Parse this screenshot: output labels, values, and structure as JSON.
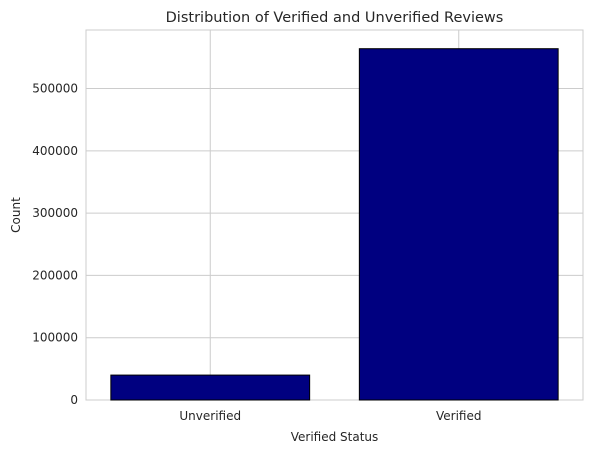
{
  "chart_data": {
    "type": "bar",
    "title": "Distribution of Verified and Unverified Reviews",
    "xlabel": "Verified Status",
    "ylabel": "Count",
    "categories": [
      "Unverified",
      "Verified"
    ],
    "values": [
      40000,
      564000
    ],
    "ylim": [
      0,
      594000
    ],
    "yticks": [
      0,
      100000,
      200000,
      300000,
      400000,
      500000
    ],
    "ytick_labels": [
      "0",
      "100000",
      "200000",
      "300000",
      "400000",
      "500000"
    ],
    "grid": true,
    "legend": "none",
    "colors": {
      "bar_fill": "#000080",
      "bar_edge": "#000000",
      "grid": "#cccccc",
      "frame": "#cccccc",
      "text": "#262626"
    }
  }
}
